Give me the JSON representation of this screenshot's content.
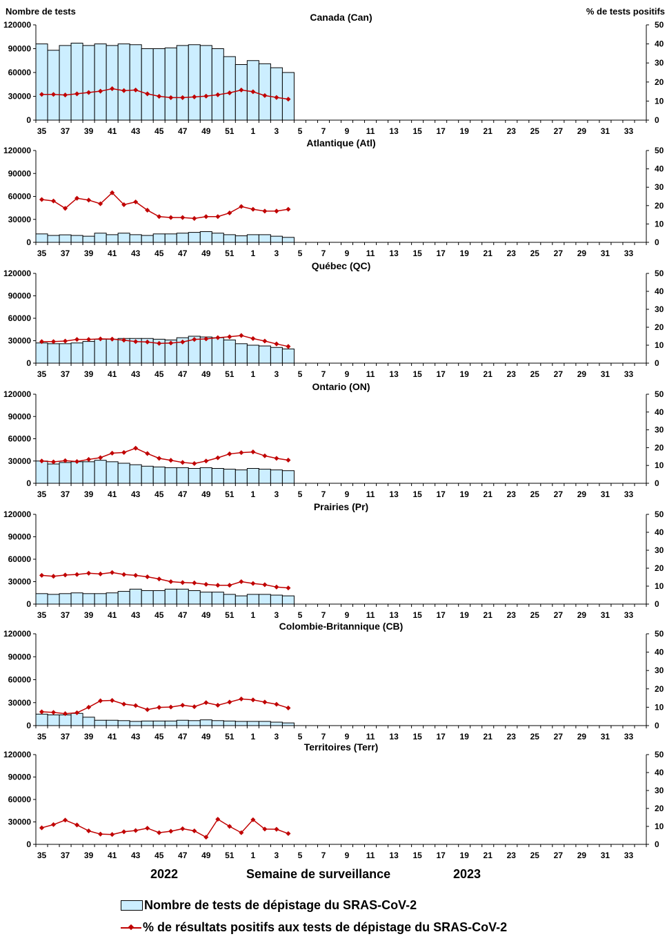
{
  "chart_data": {
    "type": "bar",
    "y_left_title": "Nombre de tests",
    "y_right_title": "% de tests positifs",
    "x_title": "Semaine de surveillance",
    "year_labels": [
      "2022",
      "2023"
    ],
    "legend": {
      "bars": "Nombre de tests de dépistage du SRAS-CoV-2",
      "line": "% de résultats positifs aux tests de dépistage du SRAS-CoV-2"
    },
    "weeks": [
      "35",
      "36",
      "37",
      "38",
      "39",
      "40",
      "41",
      "42",
      "43",
      "44",
      "45",
      "46",
      "47",
      "48",
      "49",
      "50",
      "51",
      "52",
      "1",
      "2",
      "3",
      "4",
      "5",
      "6",
      "7",
      "8",
      "9",
      "10",
      "11",
      "12",
      "13",
      "14",
      "15",
      "16",
      "17",
      "18",
      "19",
      "20",
      "21",
      "22",
      "23",
      "24",
      "25",
      "26",
      "27",
      "28",
      "29",
      "30",
      "31",
      "32",
      "33",
      "34"
    ],
    "x_tick_labels": [
      "35",
      "37",
      "39",
      "41",
      "43",
      "45",
      "47",
      "49",
      "51",
      "1",
      "3",
      "5",
      "7",
      "9",
      "11",
      "13",
      "15",
      "17",
      "19",
      "21",
      "23",
      "25",
      "27",
      "29",
      "31",
      "33"
    ],
    "ylim_left": [
      0,
      120000
    ],
    "ylim_right": [
      0,
      50
    ],
    "left_ticks": [
      "0",
      "30000",
      "60000",
      "90000",
      "120000"
    ],
    "right_ticks": [
      "0",
      "10",
      "20",
      "30",
      "40",
      "50"
    ],
    "panels": [
      {
        "title": "Canada (Can)",
        "tests": [
          96000,
          88000,
          94000,
          97000,
          94000,
          96000,
          94000,
          96000,
          95000,
          90000,
          90000,
          91000,
          94000,
          95000,
          94000,
          90000,
          80000,
          70000,
          75000,
          71000,
          66000,
          60000
        ],
        "positivity": [
          13.5,
          13.5,
          13.2,
          13.8,
          14.5,
          15.2,
          16.5,
          15.5,
          15.8,
          13.8,
          12.5,
          11.8,
          11.8,
          12.2,
          12.6,
          13.3,
          14.3,
          15.8,
          14.9,
          12.9,
          11.9,
          11.0
        ]
      },
      {
        "title": "Atlantique (Atl)",
        "tests": [
          11000,
          9000,
          9800,
          9000,
          8000,
          12000,
          10000,
          12000,
          10000,
          9000,
          11000,
          11000,
          12000,
          13000,
          14000,
          12000,
          10000,
          8500,
          10000,
          10000,
          8000,
          6500
        ],
        "positivity": [
          23.3,
          22.5,
          18.5,
          24.0,
          23.0,
          21.0,
          27.0,
          20.5,
          22.0,
          17.5,
          14.0,
          13.5,
          13.5,
          13.0,
          14.0,
          14.0,
          16.0,
          19.5,
          18.0,
          17.0,
          17.0,
          18.0
        ]
      },
      {
        "title": "Québec (QC)",
        "tests": [
          27000,
          26000,
          26000,
          27000,
          29000,
          32000,
          32000,
          33000,
          33000,
          33000,
          32000,
          31000,
          34000,
          36000,
          35000,
          34000,
          31000,
          26000,
          24000,
          23000,
          21000,
          19000
        ],
        "positivity": [
          12.0,
          12.0,
          12.3,
          13.2,
          13.2,
          13.5,
          13.4,
          12.8,
          12.0,
          11.8,
          11.0,
          11.2,
          11.8,
          13.2,
          13.5,
          14.2,
          14.7,
          15.4,
          13.7,
          12.3,
          10.7,
          9.3
        ]
      },
      {
        "title": "Ontario (ON)",
        "tests": [
          30000,
          26000,
          28000,
          29000,
          29000,
          31000,
          29000,
          27000,
          25000,
          23000,
          22000,
          21000,
          21000,
          20000,
          21000,
          20000,
          19000,
          18000,
          20000,
          19000,
          18000,
          17000
        ],
        "positivity": [
          12.5,
          12.0,
          12.7,
          12.2,
          13.4,
          14.4,
          16.9,
          17.3,
          19.7,
          16.7,
          14.0,
          12.9,
          11.7,
          11.1,
          12.5,
          14.3,
          16.5,
          17.2,
          17.6,
          15.4,
          14.0,
          13.0
        ]
      },
      {
        "title": "Prairies (Pr)",
        "tests": [
          14000,
          13000,
          14000,
          15000,
          14000,
          14000,
          15000,
          17000,
          20000,
          18000,
          18000,
          20000,
          20000,
          18000,
          16000,
          16000,
          13000,
          11000,
          13000,
          13000,
          12000,
          11000
        ],
        "positivity": [
          16.0,
          15.5,
          16.2,
          16.5,
          17.2,
          16.8,
          17.6,
          16.5,
          16.0,
          15.2,
          14.0,
          12.5,
          12.0,
          11.8,
          11.0,
          10.5,
          10.5,
          12.5,
          11.5,
          10.8,
          9.5,
          9.0
        ]
      },
      {
        "title": "Colombie-Britannique (CB)",
        "tests": [
          15000,
          14000,
          14000,
          16000,
          11000,
          7000,
          7000,
          6500,
          5500,
          6000,
          6000,
          6000,
          7000,
          6500,
          7500,
          6500,
          6000,
          5500,
          5500,
          5500,
          4500,
          3500
        ],
        "positivity": [
          7.5,
          7.2,
          6.5,
          7.0,
          10.0,
          13.5,
          13.7,
          11.7,
          10.9,
          8.7,
          9.9,
          10.1,
          11.1,
          10.3,
          12.5,
          11.1,
          12.8,
          14.5,
          14.0,
          12.8,
          11.6,
          9.6
        ]
      },
      {
        "title": "Territoires (Terr)",
        "tests": [
          0,
          0,
          0,
          0,
          0,
          0,
          0,
          0,
          0,
          0,
          0,
          0,
          0,
          0,
          0,
          0,
          0,
          0,
          0,
          0,
          0,
          0
        ],
        "positivity": [
          9.2,
          11.0,
          13.5,
          10.8,
          7.5,
          5.7,
          5.5,
          7.0,
          7.7,
          9.0,
          6.5,
          7.3,
          8.7,
          7.5,
          4.0,
          14.0,
          10.0,
          6.5,
          13.7,
          8.5,
          8.4,
          6.0
        ]
      }
    ]
  }
}
